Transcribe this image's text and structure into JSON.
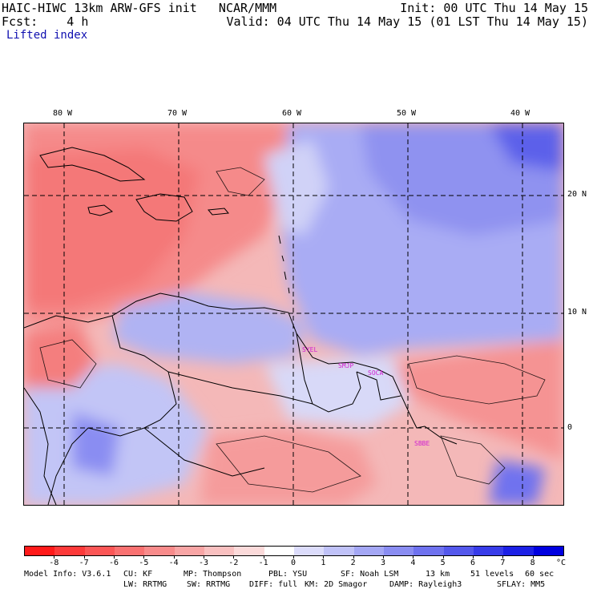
{
  "header": {
    "title": "HAIC-HIWC 13km ARW-GFS init   NCAR/MMM",
    "init": "Init: 00 UTC Thu 14 May 15",
    "fcst": "Fcst:    4 h",
    "valid": "Valid: 04 UTC Thu 14 May 15 (01 LST Thu 14 May 15)",
    "field": "Lifted index"
  },
  "map": {
    "lon_labels": [
      "80 W",
      "70 W",
      "60 W",
      "50 W",
      "40 W"
    ],
    "lat_labels": [
      "20 N",
      "10 N",
      "0"
    ],
    "stations": [
      "SYEL",
      "SMJP",
      "SOCA",
      "SBBE"
    ]
  },
  "colorbar": {
    "unit": "°C",
    "labels": [
      "-8",
      "-7",
      "-6",
      "-5",
      "-4",
      "-3",
      "-2",
      "-1",
      "0",
      "1",
      "2",
      "3",
      "4",
      "5",
      "6",
      "7",
      "8"
    ],
    "colors": [
      "#ff1a1a",
      "#fd3a3a",
      "#fb5656",
      "#f97171",
      "#f88b8b",
      "#f8a5a5",
      "#f9c0c0",
      "#fbdada",
      "#ffffff",
      "#dcdcfb",
      "#c0c2f8",
      "#a4a7f5",
      "#8a8df2",
      "#6f72ef",
      "#5458ec",
      "#383ce9",
      "#1c20e6",
      "#0000e0"
    ]
  },
  "footer": {
    "line1": [
      "Model Info: V3.6.1",
      "CU: KF",
      "MP: Thompson",
      "PBL: YSU",
      "SF: Noah LSM",
      "13 km",
      "51 levels",
      "60 sec"
    ],
    "line2": [
      "LW: RRTMG",
      "SW: RRTMG",
      "DIFF: full",
      "KM: 2D Smagor",
      "DAMP: Rayleigh3",
      "SFLAY: MM5"
    ]
  }
}
